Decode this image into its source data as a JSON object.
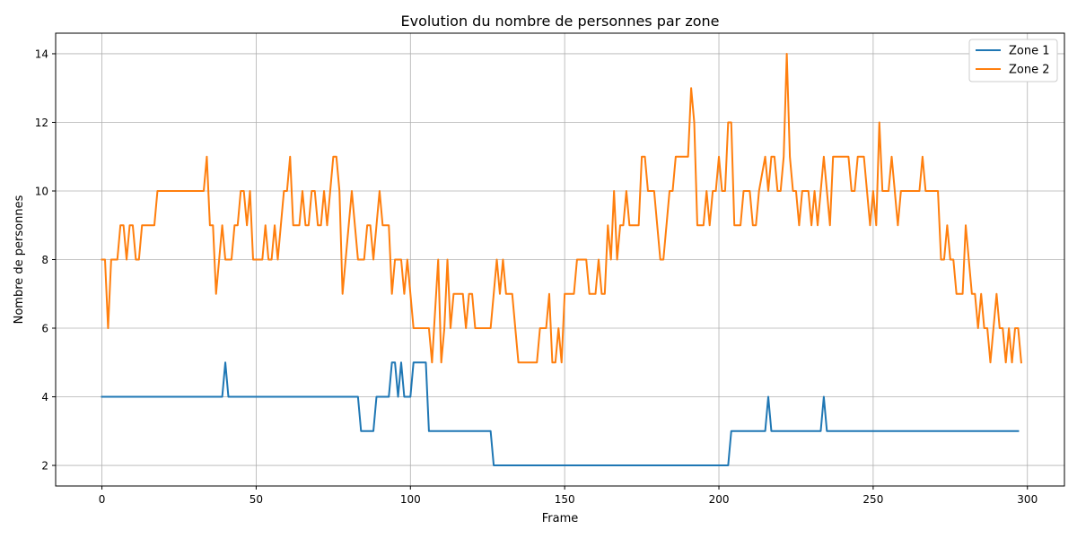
{
  "chart_data": {
    "type": "line",
    "title": "Evolution du nombre de personnes par zone",
    "xlabel": "Frame",
    "ylabel": "Nombre de personnes",
    "xlim": [
      -15,
      312
    ],
    "ylim": [
      1.4,
      14.6
    ],
    "xticks": [
      0,
      50,
      100,
      150,
      200,
      250,
      300
    ],
    "yticks": [
      2,
      4,
      6,
      8,
      10,
      12,
      14
    ],
    "grid": true,
    "legend": "top-right",
    "series": [
      {
        "name": "Zone 1",
        "color": "#1f77b4",
        "points": [
          [
            0,
            4
          ],
          [
            39,
            4
          ],
          [
            40,
            5
          ],
          [
            41,
            4
          ],
          [
            83,
            4
          ],
          [
            84,
            3
          ],
          [
            88,
            3
          ],
          [
            89,
            4
          ],
          [
            93,
            4
          ],
          [
            94,
            5
          ],
          [
            95,
            5
          ],
          [
            96,
            4
          ],
          [
            97,
            5
          ],
          [
            98,
            4
          ],
          [
            100,
            4
          ],
          [
            101,
            5
          ],
          [
            105,
            5
          ],
          [
            106,
            3
          ],
          [
            126,
            3
          ],
          [
            127,
            2
          ],
          [
            203,
            2
          ],
          [
            204,
            3
          ],
          [
            215,
            3
          ],
          [
            216,
            4
          ],
          [
            217,
            3
          ],
          [
            233,
            3
          ],
          [
            234,
            4
          ],
          [
            235,
            3
          ],
          [
            297,
            3
          ]
        ]
      },
      {
        "name": "Zone 2",
        "color": "#ff7f0e",
        "points": [
          [
            0,
            8
          ],
          [
            1,
            8
          ],
          [
            2,
            6
          ],
          [
            3,
            8
          ],
          [
            5,
            8
          ],
          [
            6,
            9
          ],
          [
            7,
            9
          ],
          [
            8,
            8
          ],
          [
            9,
            9
          ],
          [
            10,
            9
          ],
          [
            11,
            8
          ],
          [
            12,
            8
          ],
          [
            13,
            9
          ],
          [
            17,
            9
          ],
          [
            18,
            10
          ],
          [
            33,
            10
          ],
          [
            34,
            11
          ],
          [
            35,
            9
          ],
          [
            36,
            9
          ],
          [
            37,
            7
          ],
          [
            38,
            8
          ],
          [
            39,
            9
          ],
          [
            40,
            8
          ],
          [
            42,
            8
          ],
          [
            43,
            9
          ],
          [
            44,
            9
          ],
          [
            45,
            10
          ],
          [
            46,
            10
          ],
          [
            47,
            9
          ],
          [
            48,
            10
          ],
          [
            49,
            8
          ],
          [
            52,
            8
          ],
          [
            53,
            9
          ],
          [
            54,
            8
          ],
          [
            55,
            8
          ],
          [
            56,
            9
          ],
          [
            57,
            8
          ],
          [
            59,
            10
          ],
          [
            60,
            10
          ],
          [
            61,
            11
          ],
          [
            62,
            9
          ],
          [
            64,
            9
          ],
          [
            65,
            10
          ],
          [
            66,
            9
          ],
          [
            67,
            9
          ],
          [
            68,
            10
          ],
          [
            69,
            10
          ],
          [
            70,
            9
          ],
          [
            71,
            9
          ],
          [
            72,
            10
          ],
          [
            73,
            9
          ],
          [
            75,
            11
          ],
          [
            76,
            11
          ],
          [
            77,
            10
          ],
          [
            78,
            7
          ],
          [
            80,
            9
          ],
          [
            81,
            10
          ],
          [
            83,
            8
          ],
          [
            85,
            8
          ],
          [
            86,
            9
          ],
          [
            87,
            9
          ],
          [
            88,
            8
          ],
          [
            90,
            10
          ],
          [
            91,
            9
          ],
          [
            93,
            9
          ],
          [
            94,
            7
          ],
          [
            95,
            8
          ],
          [
            97,
            8
          ],
          [
            98,
            7
          ],
          [
            99,
            8
          ],
          [
            101,
            6
          ],
          [
            106,
            6
          ],
          [
            107,
            5
          ],
          [
            109,
            8
          ],
          [
            110,
            5
          ],
          [
            111,
            6
          ],
          [
            112,
            8
          ],
          [
            113,
            6
          ],
          [
            114,
            7
          ],
          [
            117,
            7
          ],
          [
            118,
            6
          ],
          [
            119,
            7
          ],
          [
            120,
            7
          ],
          [
            121,
            6
          ],
          [
            126,
            6
          ],
          [
            128,
            8
          ],
          [
            129,
            7
          ],
          [
            130,
            8
          ],
          [
            131,
            7
          ],
          [
            133,
            7
          ],
          [
            135,
            5
          ],
          [
            141,
            5
          ],
          [
            142,
            6
          ],
          [
            144,
            6
          ],
          [
            145,
            7
          ],
          [
            146,
            5
          ],
          [
            147,
            5
          ],
          [
            148,
            6
          ],
          [
            149,
            5
          ],
          [
            150,
            7
          ],
          [
            153,
            7
          ],
          [
            154,
            8
          ],
          [
            157,
            8
          ],
          [
            158,
            7
          ],
          [
            160,
            7
          ],
          [
            161,
            8
          ],
          [
            162,
            7
          ],
          [
            163,
            7
          ],
          [
            164,
            9
          ],
          [
            165,
            8
          ],
          [
            166,
            10
          ],
          [
            167,
            8
          ],
          [
            168,
            9
          ],
          [
            169,
            9
          ],
          [
            170,
            10
          ],
          [
            171,
            9
          ],
          [
            174,
            9
          ],
          [
            175,
            11
          ],
          [
            176,
            11
          ],
          [
            177,
            10
          ],
          [
            179,
            10
          ],
          [
            181,
            8
          ],
          [
            182,
            8
          ],
          [
            183,
            9
          ],
          [
            184,
            10
          ],
          [
            185,
            10
          ],
          [
            186,
            11
          ],
          [
            190,
            11
          ],
          [
            191,
            13
          ],
          [
            192,
            12
          ],
          [
            193,
            9
          ],
          [
            195,
            9
          ],
          [
            196,
            10
          ],
          [
            197,
            9
          ],
          [
            198,
            10
          ],
          [
            199,
            10
          ],
          [
            200,
            11
          ],
          [
            201,
            10
          ],
          [
            202,
            10
          ],
          [
            203,
            12
          ],
          [
            204,
            12
          ],
          [
            205,
            9
          ],
          [
            207,
            9
          ],
          [
            208,
            10
          ],
          [
            210,
            10
          ],
          [
            211,
            9
          ],
          [
            212,
            9
          ],
          [
            213,
            10
          ],
          [
            215,
            11
          ],
          [
            216,
            10
          ],
          [
            217,
            11
          ],
          [
            218,
            11
          ],
          [
            219,
            10
          ],
          [
            220,
            10
          ],
          [
            221,
            11
          ],
          [
            222,
            14
          ],
          [
            223,
            11
          ],
          [
            224,
            10
          ],
          [
            225,
            10
          ],
          [
            226,
            9
          ],
          [
            227,
            10
          ],
          [
            229,
            10
          ],
          [
            230,
            9
          ],
          [
            231,
            10
          ],
          [
            232,
            9
          ],
          [
            233,
            10
          ],
          [
            234,
            11
          ],
          [
            235,
            10
          ],
          [
            236,
            9
          ],
          [
            237,
            11
          ],
          [
            242,
            11
          ],
          [
            243,
            10
          ],
          [
            244,
            10
          ],
          [
            245,
            11
          ],
          [
            247,
            11
          ],
          [
            248,
            10
          ],
          [
            249,
            9
          ],
          [
            250,
            10
          ],
          [
            251,
            9
          ],
          [
            252,
            12
          ],
          [
            253,
            10
          ],
          [
            255,
            10
          ],
          [
            256,
            11
          ],
          [
            257,
            10
          ],
          [
            258,
            9
          ],
          [
            259,
            10
          ],
          [
            265,
            10
          ],
          [
            266,
            11
          ],
          [
            267,
            10
          ],
          [
            271,
            10
          ],
          [
            272,
            8
          ],
          [
            273,
            8
          ],
          [
            274,
            9
          ],
          [
            275,
            8
          ],
          [
            276,
            8
          ],
          [
            277,
            7
          ],
          [
            279,
            7
          ],
          [
            280,
            9
          ],
          [
            282,
            7
          ],
          [
            283,
            7
          ],
          [
            284,
            6
          ],
          [
            285,
            7
          ],
          [
            286,
            6
          ],
          [
            287,
            6
          ],
          [
            288,
            5
          ],
          [
            290,
            7
          ],
          [
            291,
            6
          ],
          [
            292,
            6
          ],
          [
            293,
            5
          ],
          [
            294,
            6
          ],
          [
            295,
            5
          ],
          [
            296,
            6
          ],
          [
            297,
            6
          ],
          [
            298,
            5
          ]
        ]
      }
    ]
  }
}
